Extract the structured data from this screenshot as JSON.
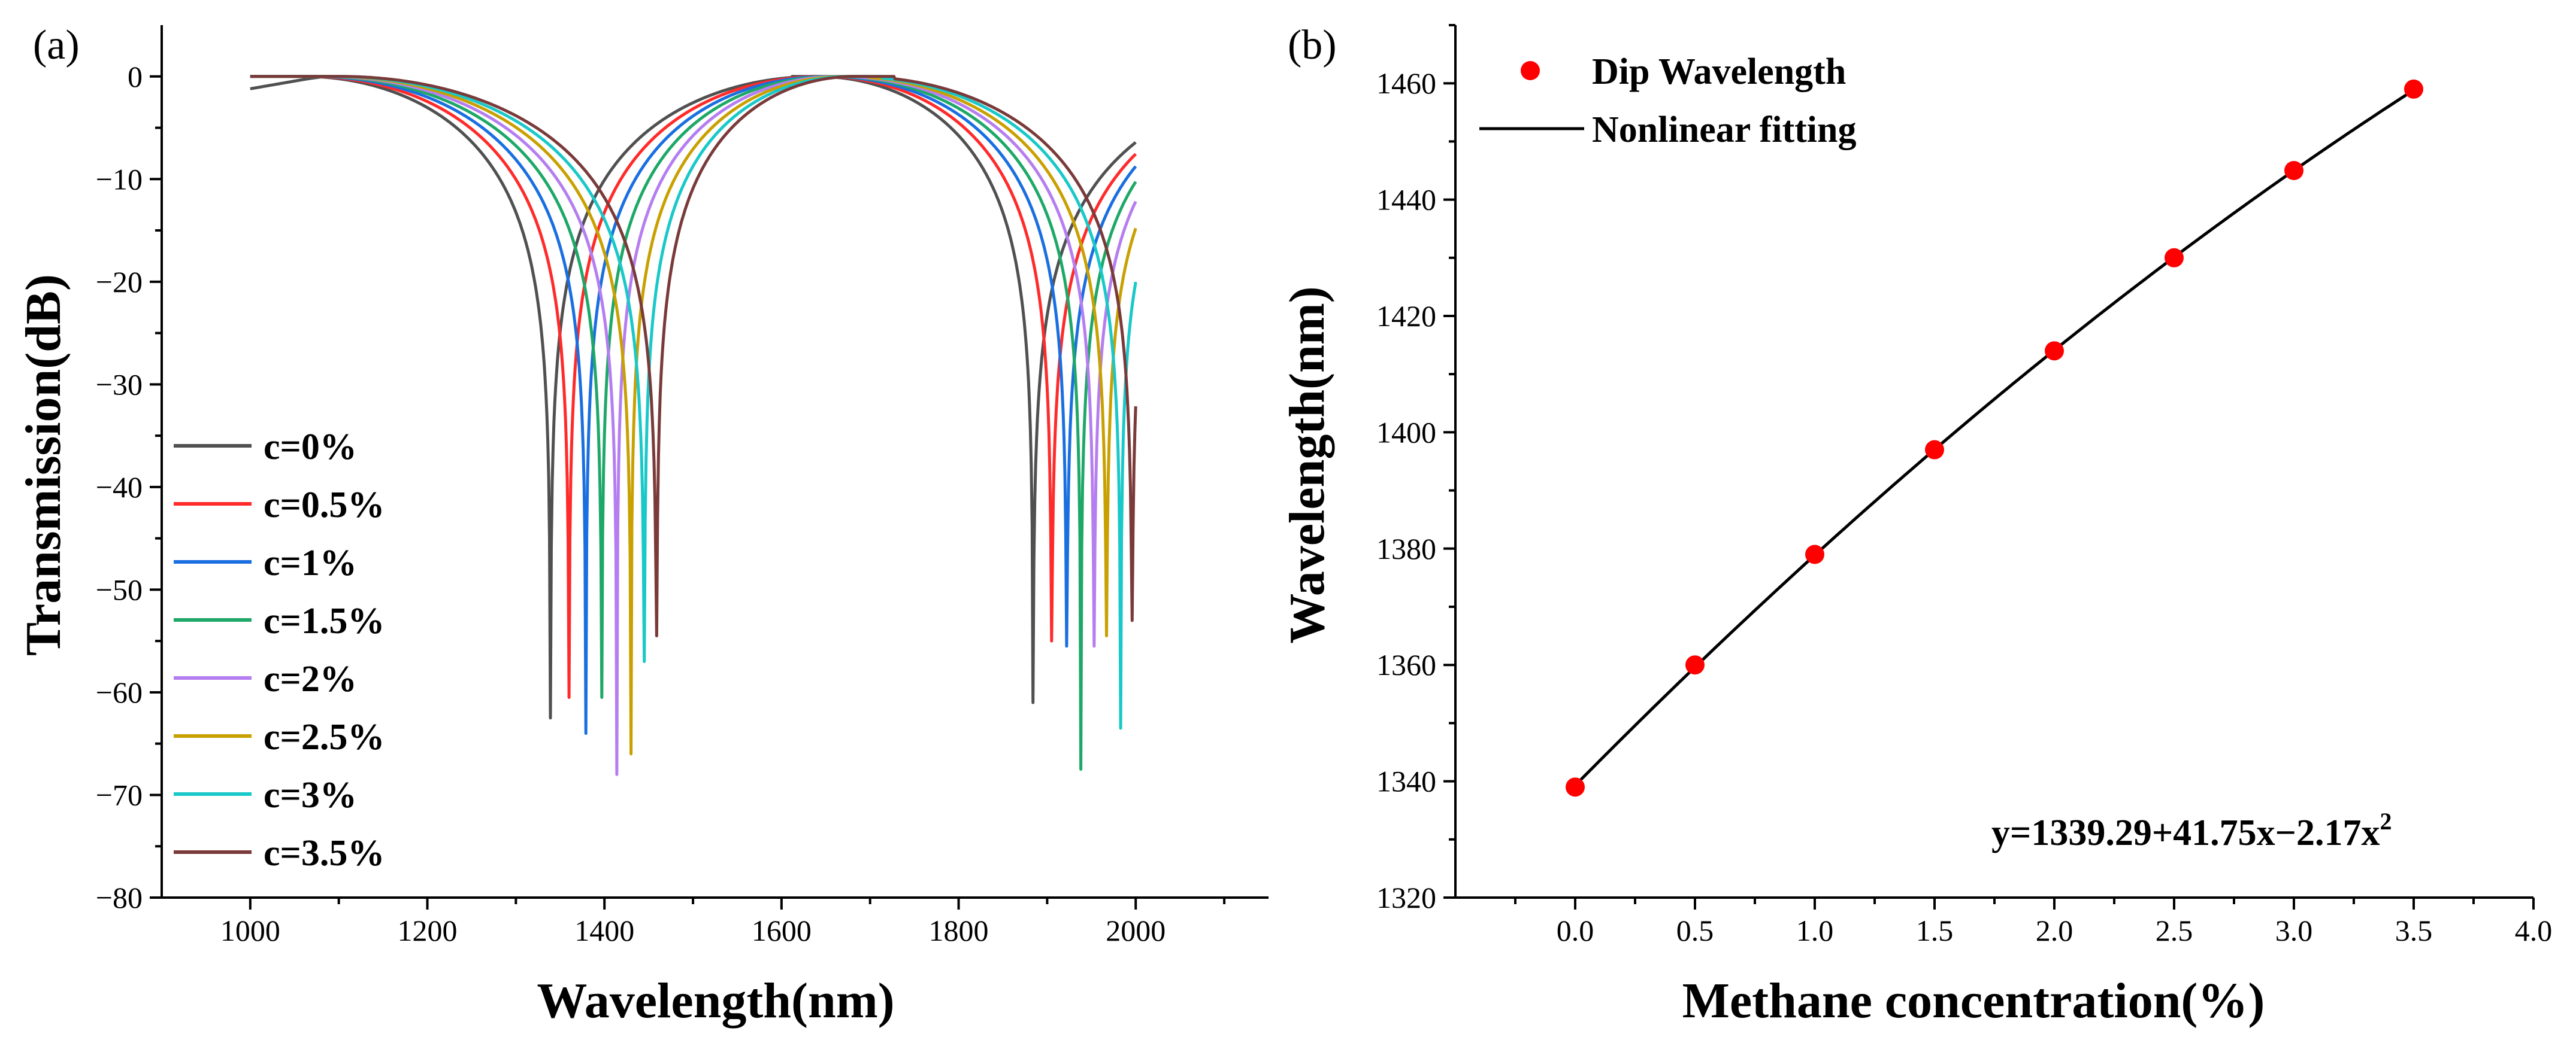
{
  "chart_data": [
    {
      "panel": "(a)",
      "type": "line",
      "xlabel": "Wavelength(nm)",
      "ylabel": "Transmission(dB)",
      "xlim": [
        900,
        2150
      ],
      "ylim": [
        -80,
        5
      ],
      "x_ticks": [
        1000,
        1200,
        1400,
        1600,
        1800,
        2000
      ],
      "y_ticks": [
        0,
        -10,
        -20,
        -30,
        -40,
        -50,
        -60,
        -70,
        -80
      ],
      "x_range_data": [
        1000,
        2000
      ],
      "legend_position": "lower-left",
      "series": [
        {
          "name": "c=0%",
          "color": "#505050",
          "dips": [
            1339,
            1884
          ],
          "min_db": [
            -62.5,
            -61.0
          ]
        },
        {
          "name": "c=0.5%",
          "color": "#ff2a2a",
          "dips": [
            1360,
            1905
          ],
          "min_db": [
            -60.5,
            -55.0
          ]
        },
        {
          "name": "c=1%",
          "color": "#1a6fe0",
          "dips": [
            1379,
            1922
          ],
          "min_db": [
            -64.0,
            -55.5
          ]
        },
        {
          "name": "c=1.5%",
          "color": "#1ea868",
          "dips": [
            1397,
            1938
          ],
          "min_db": [
            -60.5,
            -67.5
          ]
        },
        {
          "name": "c=2%",
          "color": "#b57ef0",
          "dips": [
            1414,
            1953
          ],
          "min_db": [
            -68.0,
            -55.5
          ]
        },
        {
          "name": "c=2.5%",
          "color": "#c8a000",
          "dips": [
            1430,
            1967
          ],
          "min_db": [
            -66.0,
            -54.5
          ]
        },
        {
          "name": "c=3%",
          "color": "#19c8c8",
          "dips": [
            1445,
            1983
          ],
          "min_db": [
            -57.0,
            -63.5
          ]
        },
        {
          "name": "c=3.5%",
          "color": "#7a3a3a",
          "dips": [
            1459,
            1996
          ],
          "min_db": [
            -54.5,
            -53.0
          ]
        }
      ]
    },
    {
      "panel": "(b)",
      "type": "scatter",
      "xlabel": "Methane concentration(%)",
      "ylabel": "Wavelength(nm)",
      "xlim": [
        -0.5,
        4.0
      ],
      "ylim": [
        1320,
        1470
      ],
      "x_ticks": [
        "0.0",
        "0.5",
        "1.0",
        "1.5",
        "2.0",
        "2.5",
        "3.0",
        "3.5",
        "4.0"
      ],
      "y_ticks": [
        1320,
        1340,
        1360,
        1380,
        1400,
        1420,
        1440,
        1460
      ],
      "legend_position": "top-left",
      "series": [
        {
          "name": "Dip Wavelength",
          "type": "scatter",
          "color": "#ff0000",
          "x": [
            0,
            0.5,
            1.0,
            1.5,
            2.0,
            2.5,
            3.0,
            3.5
          ],
          "y": [
            1339,
            1360,
            1379,
            1397,
            1414,
            1430,
            1445,
            1459
          ]
        },
        {
          "name": "Nonlinear fitting",
          "type": "line",
          "color": "#000000",
          "coefficients": [
            1339.29,
            41.75,
            -2.17
          ]
        }
      ],
      "equation_main": "y=1339.29+41.75x−2.17x",
      "equation_sup": "2"
    }
  ]
}
